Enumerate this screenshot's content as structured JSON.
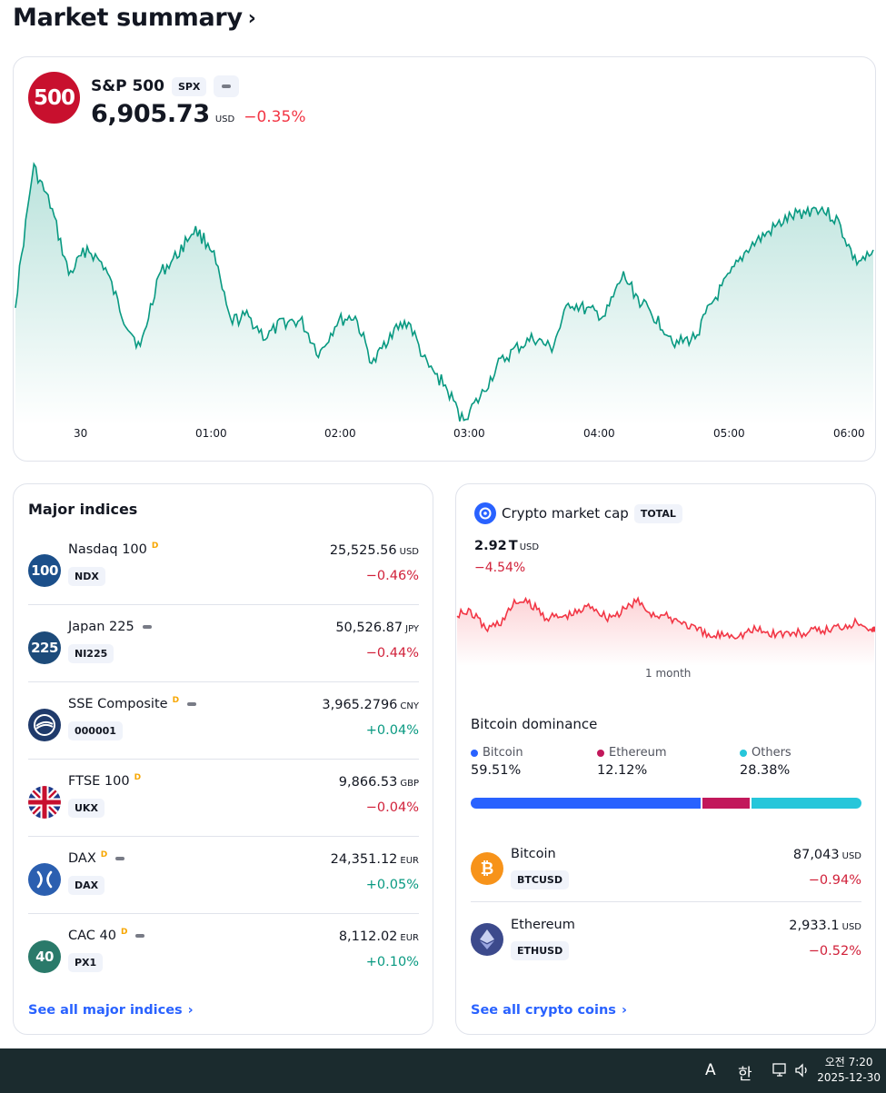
{
  "page": {
    "title": "Market summary",
    "title_chevron": "›"
  },
  "spx": {
    "logo_text": "500",
    "name": "S&P 500",
    "symbol": "SPX",
    "price": "6,905.73",
    "currency": "USD",
    "change": "−0.35%",
    "time_labels": [
      "30",
      "01:00",
      "02:00",
      "03:00",
      "04:00",
      "05:00",
      "06:00"
    ],
    "line_color": "#089981"
  },
  "indices": {
    "title": "Major indices",
    "items": [
      {
        "logo": "100",
        "logo_color": "#1b4f8a",
        "name": "Nasdaq 100",
        "delayed": "D",
        "dash": false,
        "symbol": "NDX",
        "value": "25,525.56",
        "currency": "USD",
        "change": "−0.46%",
        "dir": "neg"
      },
      {
        "logo": "225",
        "logo_color": "#1d4b7a",
        "name": "Japan 225",
        "delayed": "",
        "dash": true,
        "symbol": "NI225",
        "value": "50,526.87",
        "currency": "JPY",
        "change": "−0.44%",
        "dir": "neg"
      },
      {
        "logo": "",
        "logo_color": "#1f3a6b",
        "name": "SSE Composite",
        "delayed": "D",
        "dash": true,
        "symbol": "000001",
        "value": "3,965.2796",
        "currency": "CNY",
        "change": "+0.04%",
        "dir": "pos"
      },
      {
        "logo": "",
        "logo_color": "#ffffff",
        "name": "FTSE 100",
        "delayed": "D",
        "dash": false,
        "symbol": "UKX",
        "value": "9,866.53",
        "currency": "GBP",
        "change": "−0.04%",
        "dir": "neg"
      },
      {
        "logo": "",
        "logo_color": "#2b5fb0",
        "name": "DAX",
        "delayed": "D",
        "dash": true,
        "symbol": "DAX",
        "value": "24,351.12",
        "currency": "EUR",
        "change": "+0.05%",
        "dir": "pos"
      },
      {
        "logo": "40",
        "logo_color": "#2a7a6a",
        "name": "CAC 40",
        "delayed": "D",
        "dash": true,
        "symbol": "PX1",
        "value": "8,112.02",
        "currency": "EUR",
        "change": "+0.10%",
        "dir": "pos"
      }
    ],
    "see_all": "See all major indices",
    "see_all_chevron": "›"
  },
  "crypto": {
    "title": "Crypto market cap",
    "symbol": "TOTAL",
    "value": "2.92",
    "unit": "T",
    "currency": "USD",
    "change": "−4.54%",
    "axis_label": "1 month",
    "line_color": "#f23645",
    "dominance": {
      "title": "Bitcoin dominance",
      "items": [
        {
          "label": "Bitcoin",
          "pct": "59.51%",
          "share": 59.51,
          "color": "#2962ff"
        },
        {
          "label": "Ethereum",
          "pct": "12.12%",
          "share": 12.12,
          "color": "#c2185b"
        },
        {
          "label": "Others",
          "pct": "28.38%",
          "share": 28.38,
          "color": "#26c6da"
        }
      ]
    },
    "coins": [
      {
        "name": "Bitcoin",
        "symbol": "BTCUSD",
        "value": "87,043",
        "currency": "USD",
        "change": "−0.94%",
        "logo_color": "#f7931a",
        "logo_glyph": "₿"
      },
      {
        "name": "Ethereum",
        "symbol": "ETHUSD",
        "value": "2,933.1",
        "currency": "USD",
        "change": "−0.52%",
        "logo_color": "#3c4a8c",
        "logo_glyph": "◆"
      }
    ],
    "see_all": "See all crypto coins",
    "see_all_chevron": "›"
  },
  "taskbar": {
    "ime_a": "A",
    "ime_han": "한",
    "time": "오전 7:20",
    "date": "2025-12-30"
  }
}
